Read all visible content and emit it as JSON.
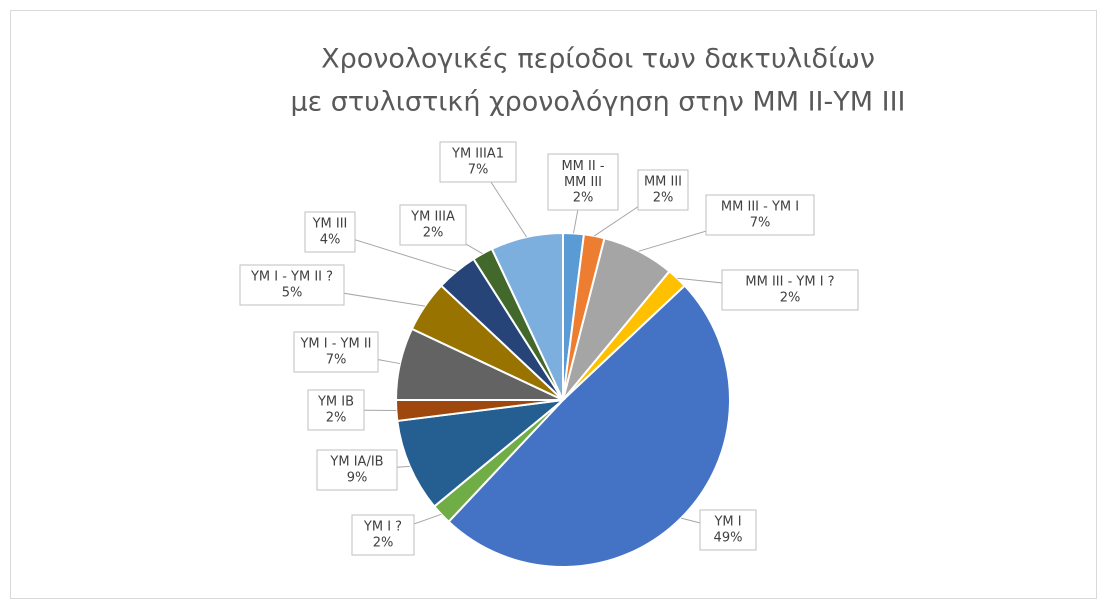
{
  "chart_data": {
    "type": "pie",
    "title": [
      "Χρονολογικές περίοδοι των δακτυλιδίων",
      "με στυλιστική χρονολόγηση στην ΜΜ ΙΙ-ΥΜ ΙΙΙ"
    ],
    "categories": [
      "MM II - MM III",
      "MM III",
      "MM III - YM I",
      "MM III - YM I ?",
      "YM I",
      "YM I ?",
      "YM IA/IB",
      "YM IB",
      "YM I - YM II",
      "YM I - YM II ?",
      "YM III",
      "YM IIIA",
      "YM IIIA1"
    ],
    "values": [
      2,
      2,
      7,
      2,
      49,
      2,
      9,
      2,
      7,
      5,
      4,
      2,
      7
    ],
    "value_labels": [
      "2%",
      "2%",
      "7%",
      "2%",
      "49%",
      "2%",
      "9%",
      "2%",
      "7%",
      "5%",
      "4%",
      "2%",
      "7%"
    ],
    "colors": [
      "#5b9bd5",
      "#ed7d31",
      "#a5a5a5",
      "#ffc000",
      "#4472c4",
      "#70ad47",
      "#255e91",
      "#9e480e",
      "#636363",
      "#997300",
      "#264478",
      "#43682b",
      "#7cafdd"
    ]
  }
}
